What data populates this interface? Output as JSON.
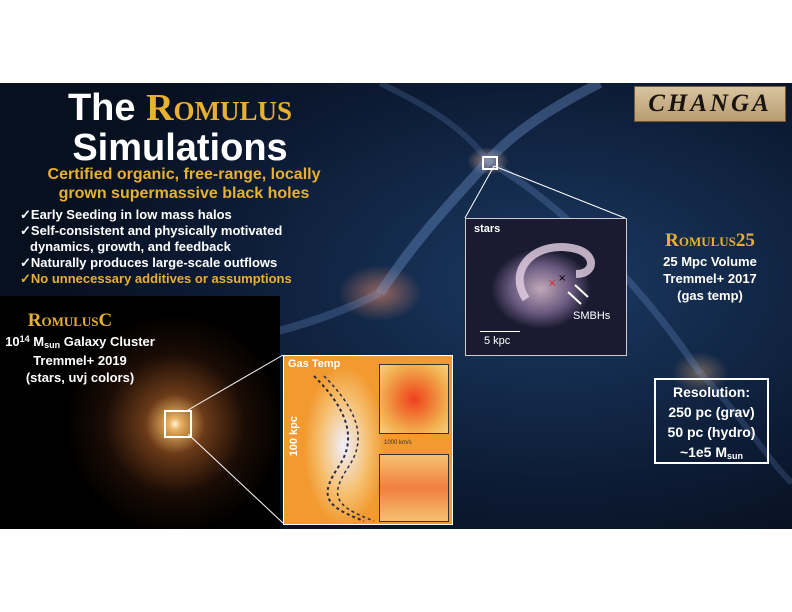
{
  "title": {
    "the": "The",
    "romulus": "Romulus",
    "simulations": "Simulations"
  },
  "subtitle": [
    "Certified organic, free-range, locally",
    "grown supermassive black holes"
  ],
  "bullets": [
    {
      "text": "✓Early Seeding in low mass halos",
      "highlight": false
    },
    {
      "text": "✓Self-consistent and physically motivated",
      "highlight": false
    },
    {
      "text": "dynamics, growth, and feedback",
      "highlight": false
    },
    {
      "text": "✓Naturally produces large-scale outflows",
      "highlight": false
    },
    {
      "text": "✓No unnecessary additives or assumptions",
      "highlight": true
    }
  ],
  "logo": {
    "text": "CHANGA"
  },
  "romulusC": {
    "title": "RomulusC",
    "line1_exp": "14",
    "line1_base": "10",
    "line1_m": "M",
    "line1_sub": "sun",
    "line1_rest": " Galaxy Cluster",
    "line2": "Tremmel+ 2019",
    "line3": "(stars, uvj colors)"
  },
  "gas_panel": {
    "title": "Gas Temp",
    "scale": "100 kpc",
    "velocity": "1000 km/s"
  },
  "stars_panel": {
    "label": "stars",
    "smbh": "SMBHs",
    "scale": "5 kpc"
  },
  "romulus25": {
    "title": "Romulus25",
    "line1": "25 Mpc Volume",
    "line2": "Tremmel+ 2017",
    "line3": "(gas temp)"
  },
  "resolution": {
    "header": "Resolution:",
    "grav": "250 pc (grav)",
    "hydro": "50 pc (hydro)",
    "mass_prefix": "~1e5 M",
    "mass_sub": "sun"
  },
  "colors": {
    "accent": "#e8b030",
    "text": "#ffffff",
    "background": "#0c1a33"
  }
}
